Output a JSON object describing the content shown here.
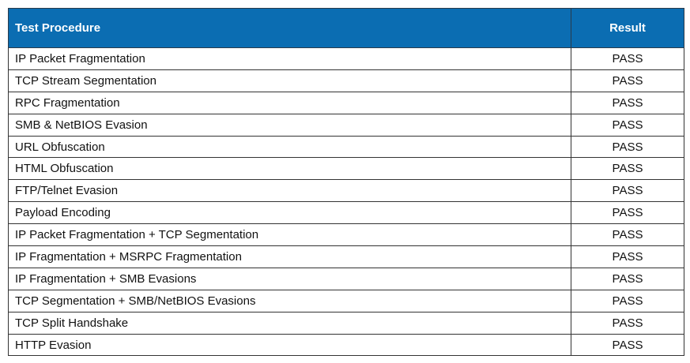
{
  "table": {
    "header": [
      "Test Procedure",
      "Result"
    ],
    "rows": [
      [
        "IP Packet Fragmentation",
        "PASS"
      ],
      [
        "TCP Stream Segmentation",
        "PASS"
      ],
      [
        "RPC Fragmentation",
        "PASS"
      ],
      [
        "SMB & NetBIOS Evasion",
        "PASS"
      ],
      [
        "URL Obfuscation",
        "PASS"
      ],
      [
        "HTML Obfuscation",
        "PASS"
      ],
      [
        "FTP/Telnet Evasion",
        "PASS"
      ],
      [
        "Payload Encoding",
        "PASS"
      ],
      [
        "IP Packet Fragmentation + TCP Segmentation",
        "PASS"
      ],
      [
        "IP Fragmentation + MSRPC Fragmentation",
        "PASS"
      ],
      [
        "IP Fragmentation + SMB Evasions",
        "PASS"
      ],
      [
        "TCP Segmentation + SMB/NetBIOS Evasions",
        "PASS"
      ],
      [
        "TCP Split Handshake",
        "PASS"
      ],
      [
        "HTTP Evasion",
        "PASS"
      ]
    ]
  }
}
